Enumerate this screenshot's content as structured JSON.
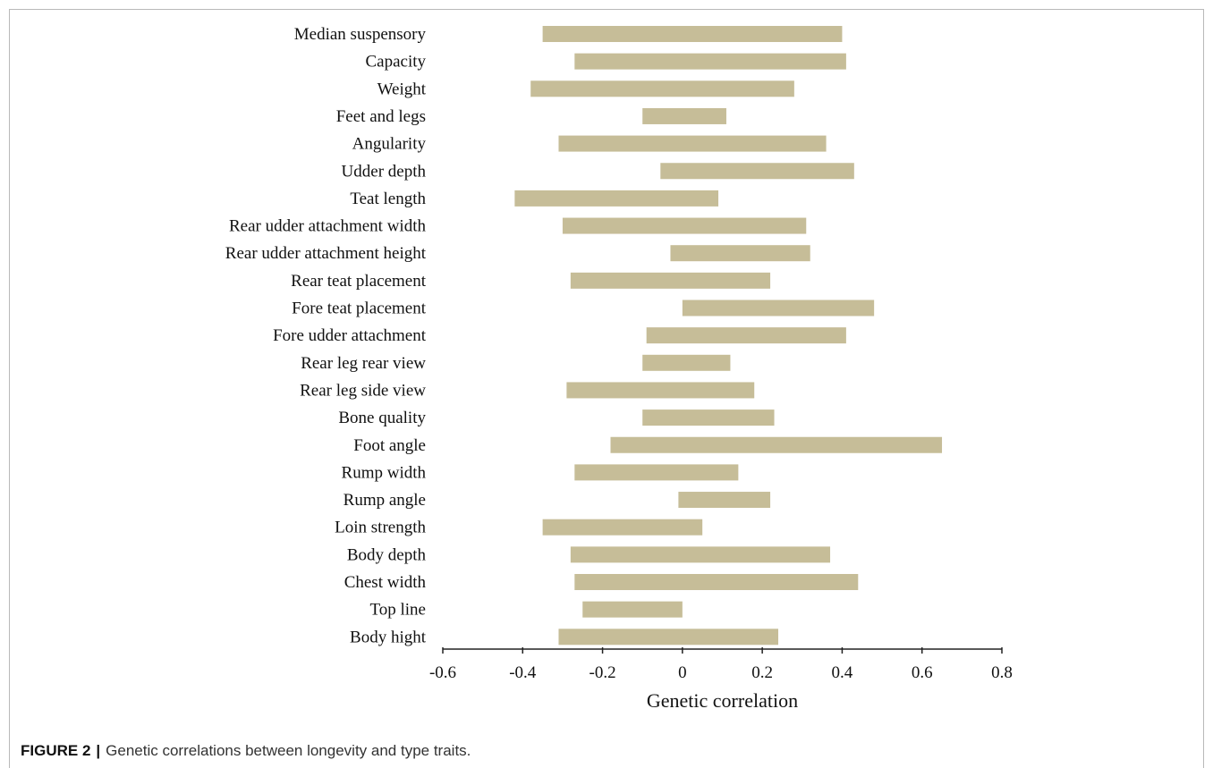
{
  "chart_data": {
    "type": "bar",
    "orientation": "horizontal-range",
    "xlabel": "Genetic correlation",
    "xlim": [
      -0.6,
      0.8
    ],
    "xticks": [
      -0.6,
      -0.4,
      -0.2,
      0,
      0.2,
      0.4,
      0.6,
      0.8
    ],
    "xtick_labels": [
      "-0.6",
      "-0.4",
      "-0.2",
      "0",
      "0.2",
      "0.4",
      "0.6",
      "0.8"
    ],
    "bar_color": "#c6bd98",
    "categories": [
      "Median suspensory",
      "Capacity",
      "Weight",
      "Feet and legs",
      "Angularity",
      "Udder depth",
      "Teat length",
      "Rear udder attachment width",
      "Rear udder attachment height",
      "Rear teat placement",
      "Fore teat placement",
      "Fore udder attachment",
      "Rear leg rear view",
      "Rear leg side view",
      "Bone quality",
      "Foot angle",
      "Rump width",
      "Rump angle",
      "Loin strength",
      "Body depth",
      "Chest width",
      "Top line",
      "Body hight"
    ],
    "ranges": [
      [
        -0.35,
        0.4
      ],
      [
        -0.27,
        0.41
      ],
      [
        -0.38,
        0.28
      ],
      [
        -0.1,
        0.11
      ],
      [
        -0.31,
        0.36
      ],
      [
        -0.055,
        0.43
      ],
      [
        -0.42,
        0.09
      ],
      [
        -0.3,
        0.31
      ],
      [
        -0.03,
        0.32
      ],
      [
        -0.28,
        0.22
      ],
      [
        0.0,
        0.48
      ],
      [
        -0.09,
        0.41
      ],
      [
        -0.1,
        0.12
      ],
      [
        -0.29,
        0.18
      ],
      [
        -0.1,
        0.23
      ],
      [
        -0.18,
        0.65
      ],
      [
        -0.27,
        0.14
      ],
      [
        -0.01,
        0.22
      ],
      [
        -0.35,
        0.05
      ],
      [
        -0.28,
        0.37
      ],
      [
        -0.27,
        0.44
      ],
      [
        -0.25,
        0.0
      ],
      [
        -0.31,
        0.24
      ]
    ]
  },
  "caption": {
    "figure_label": "FIGURE 2",
    "separator": "|",
    "text": "Genetic correlations between longevity and type traits."
  }
}
